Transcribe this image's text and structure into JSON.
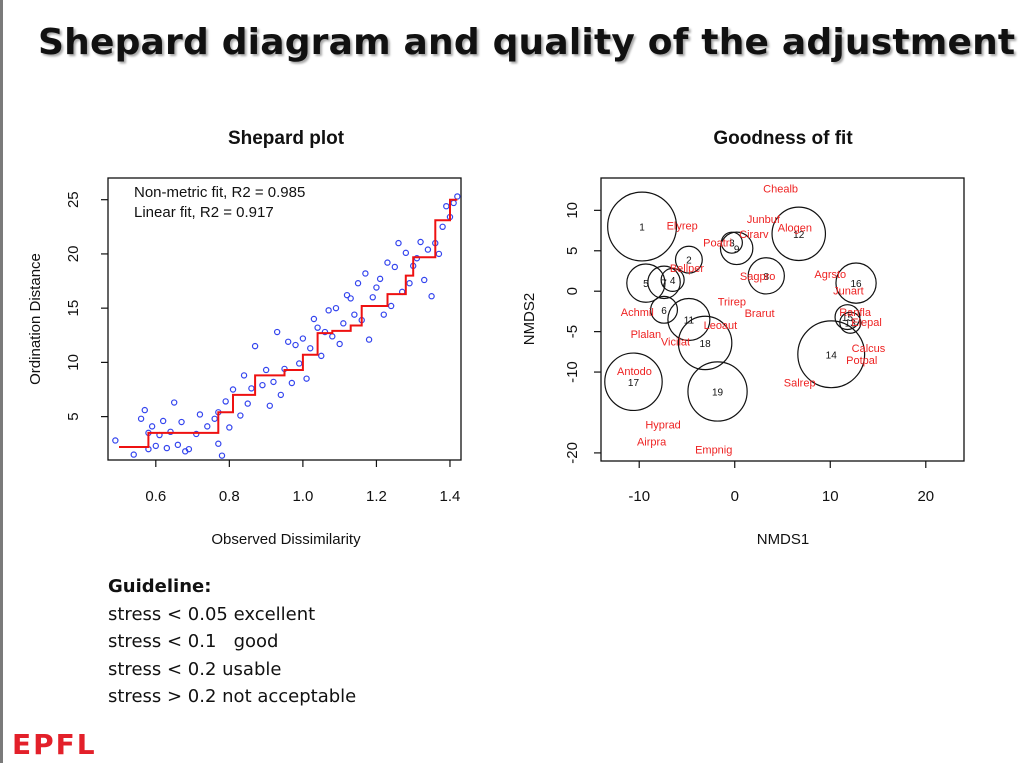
{
  "slide": {
    "title": "Shepard diagram and quality of the adjustment",
    "guideline": {
      "heading": "Guideline:",
      "lines": [
        "stress < 0.05 excellent",
        "stress < 0.1   good",
        "stress < 0.2 usable",
        "stress > 0.2 not acceptable"
      ]
    },
    "logo": "EPFL"
  },
  "colors": {
    "points": "#3344ee",
    "fit_line": "#ee1111",
    "labels": "#ee2222",
    "circles": "#111111",
    "axis": "#111111"
  },
  "chart_data": [
    {
      "type": "scatter",
      "title": "Shepard plot",
      "xlabel": "Observed Dissimilarity",
      "ylabel": "Ordination Distance",
      "xlim": [
        0.47,
        1.43
      ],
      "ylim": [
        1,
        27
      ],
      "xticks": [
        0.6,
        0.8,
        1.0,
        1.2,
        1.4
      ],
      "xtick_labels": [
        "0.6",
        "0.8",
        "1.0",
        "1.2",
        "1.4"
      ],
      "yticks": [
        5,
        10,
        15,
        20,
        25
      ],
      "ytick_labels": [
        "5",
        "10",
        "15",
        "20",
        "25"
      ],
      "annotations": [
        "Non-metric fit, R2 = 0.985",
        "Linear fit, R2 = 0.917"
      ],
      "grid": false,
      "points": {
        "x": [
          0.49,
          0.54,
          0.56,
          0.57,
          0.58,
          0.58,
          0.59,
          0.6,
          0.61,
          0.62,
          0.63,
          0.64,
          0.65,
          0.66,
          0.67,
          0.68,
          0.69,
          0.71,
          0.72,
          0.74,
          0.76,
          0.77,
          0.77,
          0.78,
          0.79,
          0.8,
          0.81,
          0.83,
          0.84,
          0.85,
          0.86,
          0.87,
          0.89,
          0.9,
          0.91,
          0.92,
          0.93,
          0.94,
          0.95,
          0.96,
          0.97,
          0.98,
          0.99,
          1.0,
          1.01,
          1.02,
          1.03,
          1.04,
          1.05,
          1.06,
          1.07,
          1.08,
          1.09,
          1.1,
          1.11,
          1.12,
          1.13,
          1.14,
          1.15,
          1.16,
          1.17,
          1.18,
          1.19,
          1.2,
          1.21,
          1.22,
          1.23,
          1.24,
          1.25,
          1.26,
          1.27,
          1.28,
          1.29,
          1.3,
          1.31,
          1.32,
          1.33,
          1.34,
          1.35,
          1.36,
          1.37,
          1.38,
          1.39,
          1.4,
          1.41,
          1.42
        ],
        "y": [
          2.8,
          1.5,
          4.8,
          5.6,
          3.5,
          2.0,
          4.1,
          2.3,
          3.3,
          4.6,
          2.1,
          3.6,
          6.3,
          2.4,
          4.5,
          1.8,
          2.0,
          3.4,
          5.2,
          4.1,
          4.8,
          2.5,
          5.4,
          1.4,
          6.4,
          4.0,
          7.5,
          5.1,
          8.8,
          6.2,
          7.6,
          11.5,
          7.9,
          9.3,
          6.0,
          8.2,
          12.8,
          7.0,
          9.4,
          11.9,
          8.1,
          11.6,
          9.9,
          12.2,
          8.5,
          11.3,
          14.0,
          13.2,
          10.6,
          12.8,
          14.8,
          12.4,
          15.0,
          11.7,
          13.6,
          16.2,
          15.9,
          14.4,
          17.3,
          13.9,
          18.2,
          12.1,
          16.0,
          16.9,
          17.7,
          14.4,
          19.2,
          15.2,
          18.8,
          21.0,
          16.5,
          20.1,
          17.3,
          18.9,
          19.6,
          21.1,
          17.6,
          20.4,
          16.1,
          21.0,
          20.0,
          22.5,
          24.4,
          23.4,
          24.7,
          25.3
        ]
      },
      "step_fit": {
        "x": [
          0.5,
          0.58,
          0.58,
          0.77,
          0.77,
          0.81,
          0.81,
          0.87,
          0.87,
          0.95,
          0.95,
          1.0,
          1.0,
          1.04,
          1.04,
          1.08,
          1.08,
          1.13,
          1.13,
          1.16,
          1.16,
          1.23,
          1.23,
          1.28,
          1.28,
          1.3,
          1.3,
          1.36,
          1.36,
          1.4,
          1.4,
          1.42
        ],
        "y": [
          2.2,
          2.2,
          3.5,
          3.5,
          5.4,
          5.4,
          7.0,
          7.0,
          8.8,
          8.8,
          9.3,
          9.3,
          10.7,
          10.7,
          12.7,
          12.7,
          12.9,
          12.9,
          13.4,
          13.4,
          15.2,
          15.2,
          16.3,
          16.3,
          18.0,
          18.0,
          19.7,
          19.7,
          23.1,
          23.1,
          25.0,
          25.0
        ]
      }
    },
    {
      "type": "scatter",
      "title": "Goodness of fit",
      "xlabel": "NMDS1",
      "ylabel": "NMDS2",
      "xlim": [
        -14,
        24
      ],
      "ylim": [
        -21,
        14
      ],
      "xticks": [
        -10,
        0,
        10,
        20
      ],
      "xtick_labels": [
        "-10",
        "0",
        "10",
        "20"
      ],
      "yticks": [
        10,
        5,
        0,
        -5,
        -10,
        -20
      ],
      "ytick_labels": [
        "10",
        "5",
        "0",
        "-5",
        "-10",
        "-20"
      ],
      "grid": false,
      "site_circles": [
        {
          "label": "1",
          "x": -9.7,
          "y": 8.0,
          "r": 3.6
        },
        {
          "label": "12",
          "x": 6.7,
          "y": 7.1,
          "r": 2.8
        },
        {
          "label": "2",
          "x": -4.8,
          "y": 3.9,
          "r": 1.4
        },
        {
          "label": "9",
          "x": 0.2,
          "y": 5.3,
          "r": 1.7
        },
        {
          "label": "3",
          "x": -0.3,
          "y": 6.0,
          "r": 1.1
        },
        {
          "label": "5",
          "x": -9.3,
          "y": 1.0,
          "r": 2.0
        },
        {
          "label": "7",
          "x": -7.4,
          "y": 1.1,
          "r": 1.7
        },
        {
          "label": "8",
          "x": 3.3,
          "y": 1.9,
          "r": 1.9
        },
        {
          "label": "16",
          "x": 12.7,
          "y": 1.0,
          "r": 2.1
        },
        {
          "label": "6",
          "x": -7.4,
          "y": -2.3,
          "r": 1.4
        },
        {
          "label": "4",
          "x": -6.5,
          "y": 1.4,
          "r": 1.2
        },
        {
          "label": "15",
          "x": 11.8,
          "y": -3.2,
          "r": 1.3
        },
        {
          "label": "11",
          "x": -4.8,
          "y": -3.5,
          "r": 2.2
        },
        {
          "label": "13",
          "x": 12.1,
          "y": -3.9,
          "r": 1.1
        },
        {
          "label": "18",
          "x": -3.1,
          "y": -6.4,
          "r": 2.8
        },
        {
          "label": "14",
          "x": 10.1,
          "y": -7.8,
          "r": 3.5
        },
        {
          "label": "17",
          "x": -10.6,
          "y": -11.2,
          "r": 3.0
        },
        {
          "label": "19",
          "x": -1.8,
          "y": -12.4,
          "r": 3.1
        }
      ],
      "species": [
        {
          "name": "Chealb",
          "x": 4.8,
          "y": 12.7
        },
        {
          "name": "Elyrep",
          "x": -5.5,
          "y": 8.1
        },
        {
          "name": "Junbuf",
          "x": 3.0,
          "y": 8.9
        },
        {
          "name": "Alogen",
          "x": 6.3,
          "y": 7.9
        },
        {
          "name": "Cirarv",
          "x": 2.0,
          "y": 7.1
        },
        {
          "name": "Poatri",
          "x": -1.8,
          "y": 6.0
        },
        {
          "name": "Bellper",
          "x": -5.0,
          "y": 2.9
        },
        {
          "name": "Sagpro",
          "x": 2.4,
          "y": 1.9
        },
        {
          "name": "Agrsto",
          "x": 10.0,
          "y": 2.1
        },
        {
          "name": "Trirep",
          "x": -0.3,
          "y": -1.3
        },
        {
          "name": "Brarut",
          "x": 2.6,
          "y": -2.7
        },
        {
          "name": "Junart",
          "x": 11.9,
          "y": 0.1
        },
        {
          "name": "Achmil",
          "x": -10.2,
          "y": -2.6
        },
        {
          "name": "Plalan",
          "x": -9.3,
          "y": -5.3
        },
        {
          "name": "Leoaut",
          "x": -1.5,
          "y": -4.2
        },
        {
          "name": "Vicilat",
          "x": -6.2,
          "y": -6.2
        },
        {
          "name": "Ranfla",
          "x": 12.6,
          "y": -2.6
        },
        {
          "name": "Elepal",
          "x": 13.8,
          "y": -3.8
        },
        {
          "name": "Calcus",
          "x": 14.0,
          "y": -7.0
        },
        {
          "name": "Potpal",
          "x": 13.3,
          "y": -8.5
        },
        {
          "name": "Salrep",
          "x": 6.8,
          "y": -11.3
        },
        {
          "name": "Antodo",
          "x": -10.5,
          "y": -9.9
        },
        {
          "name": "Hyprad",
          "x": -7.5,
          "y": -16.5
        },
        {
          "name": "Airpra",
          "x": -8.7,
          "y": -18.6
        },
        {
          "name": "Empnig",
          "x": -2.2,
          "y": -19.6
        }
      ]
    }
  ]
}
